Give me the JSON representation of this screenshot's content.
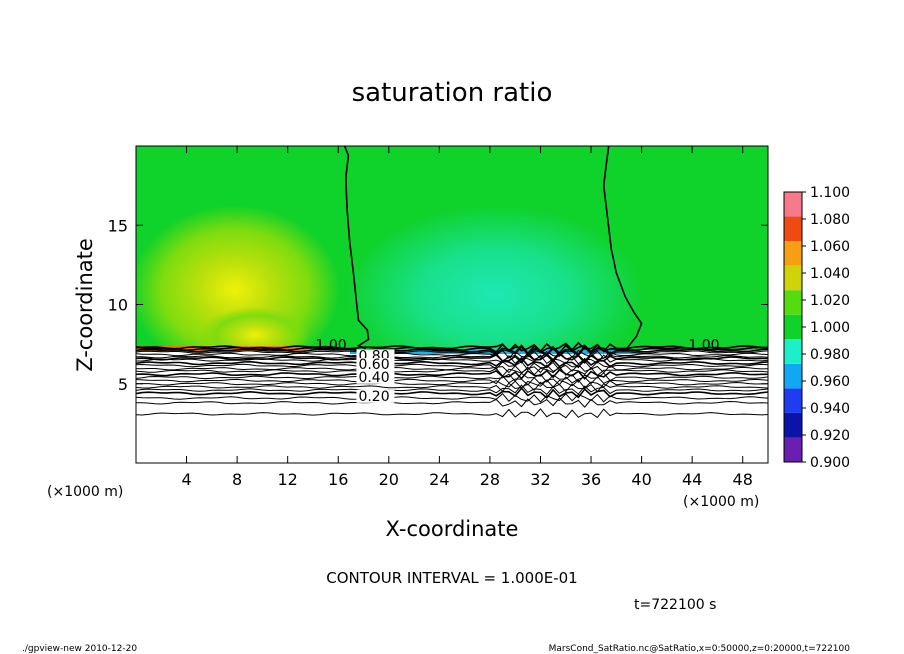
{
  "chart_data": {
    "type": "heatmap",
    "title": "saturation ratio",
    "xlabel": "X-coordinate",
    "ylabel": "Z-coordinate",
    "x_unit_left": "(×1000 m)",
    "x_unit_right": "(×1000 m)",
    "xlim": [
      0,
      50
    ],
    "ylim": [
      0,
      20
    ],
    "x_ticks": [
      4,
      8,
      12,
      16,
      20,
      24,
      28,
      32,
      36,
      40,
      44,
      48
    ],
    "y_ticks": [
      5,
      10,
      15
    ],
    "colorbar": {
      "levels": [
        0.9,
        0.92,
        0.94,
        0.96,
        0.98,
        1.0,
        1.02,
        1.04,
        1.06,
        1.08,
        1.1
      ],
      "labels": [
        "0.900",
        "0.920",
        "0.940",
        "0.960",
        "0.980",
        "1.000",
        "1.020",
        "1.040",
        "1.060",
        "1.080",
        "1.100"
      ],
      "colors": [
        "#6a1fb0",
        "#0a14a8",
        "#1e3cf0",
        "#10a8f5",
        "#1cf0c8",
        "#0fd22a",
        "#55dc0f",
        "#cfd40a",
        "#f5a012",
        "#f04a14",
        "#f77a8c"
      ]
    },
    "contours": [
      {
        "label": "1.00",
        "z": [
          7.1,
          7.2,
          7.3
        ]
      },
      {
        "label": "0.80",
        "z": [
          6.6
        ]
      },
      {
        "label": "0.60",
        "z": [
          6.3
        ]
      },
      {
        "label": "0.40",
        "z": [
          5.6
        ]
      },
      {
        "label": "0.20",
        "z": [
          4.4
        ]
      }
    ],
    "contour_note": "CONTOUR INTERVAL = 1.000E-01",
    "time_label": "t=722100 s"
  },
  "footer": {
    "left": "./gpview-new 2010-12-20",
    "right": "MarsCond_SatRatio.nc@SatRatio,x=0:50000,z=0:20000,t=722100"
  }
}
